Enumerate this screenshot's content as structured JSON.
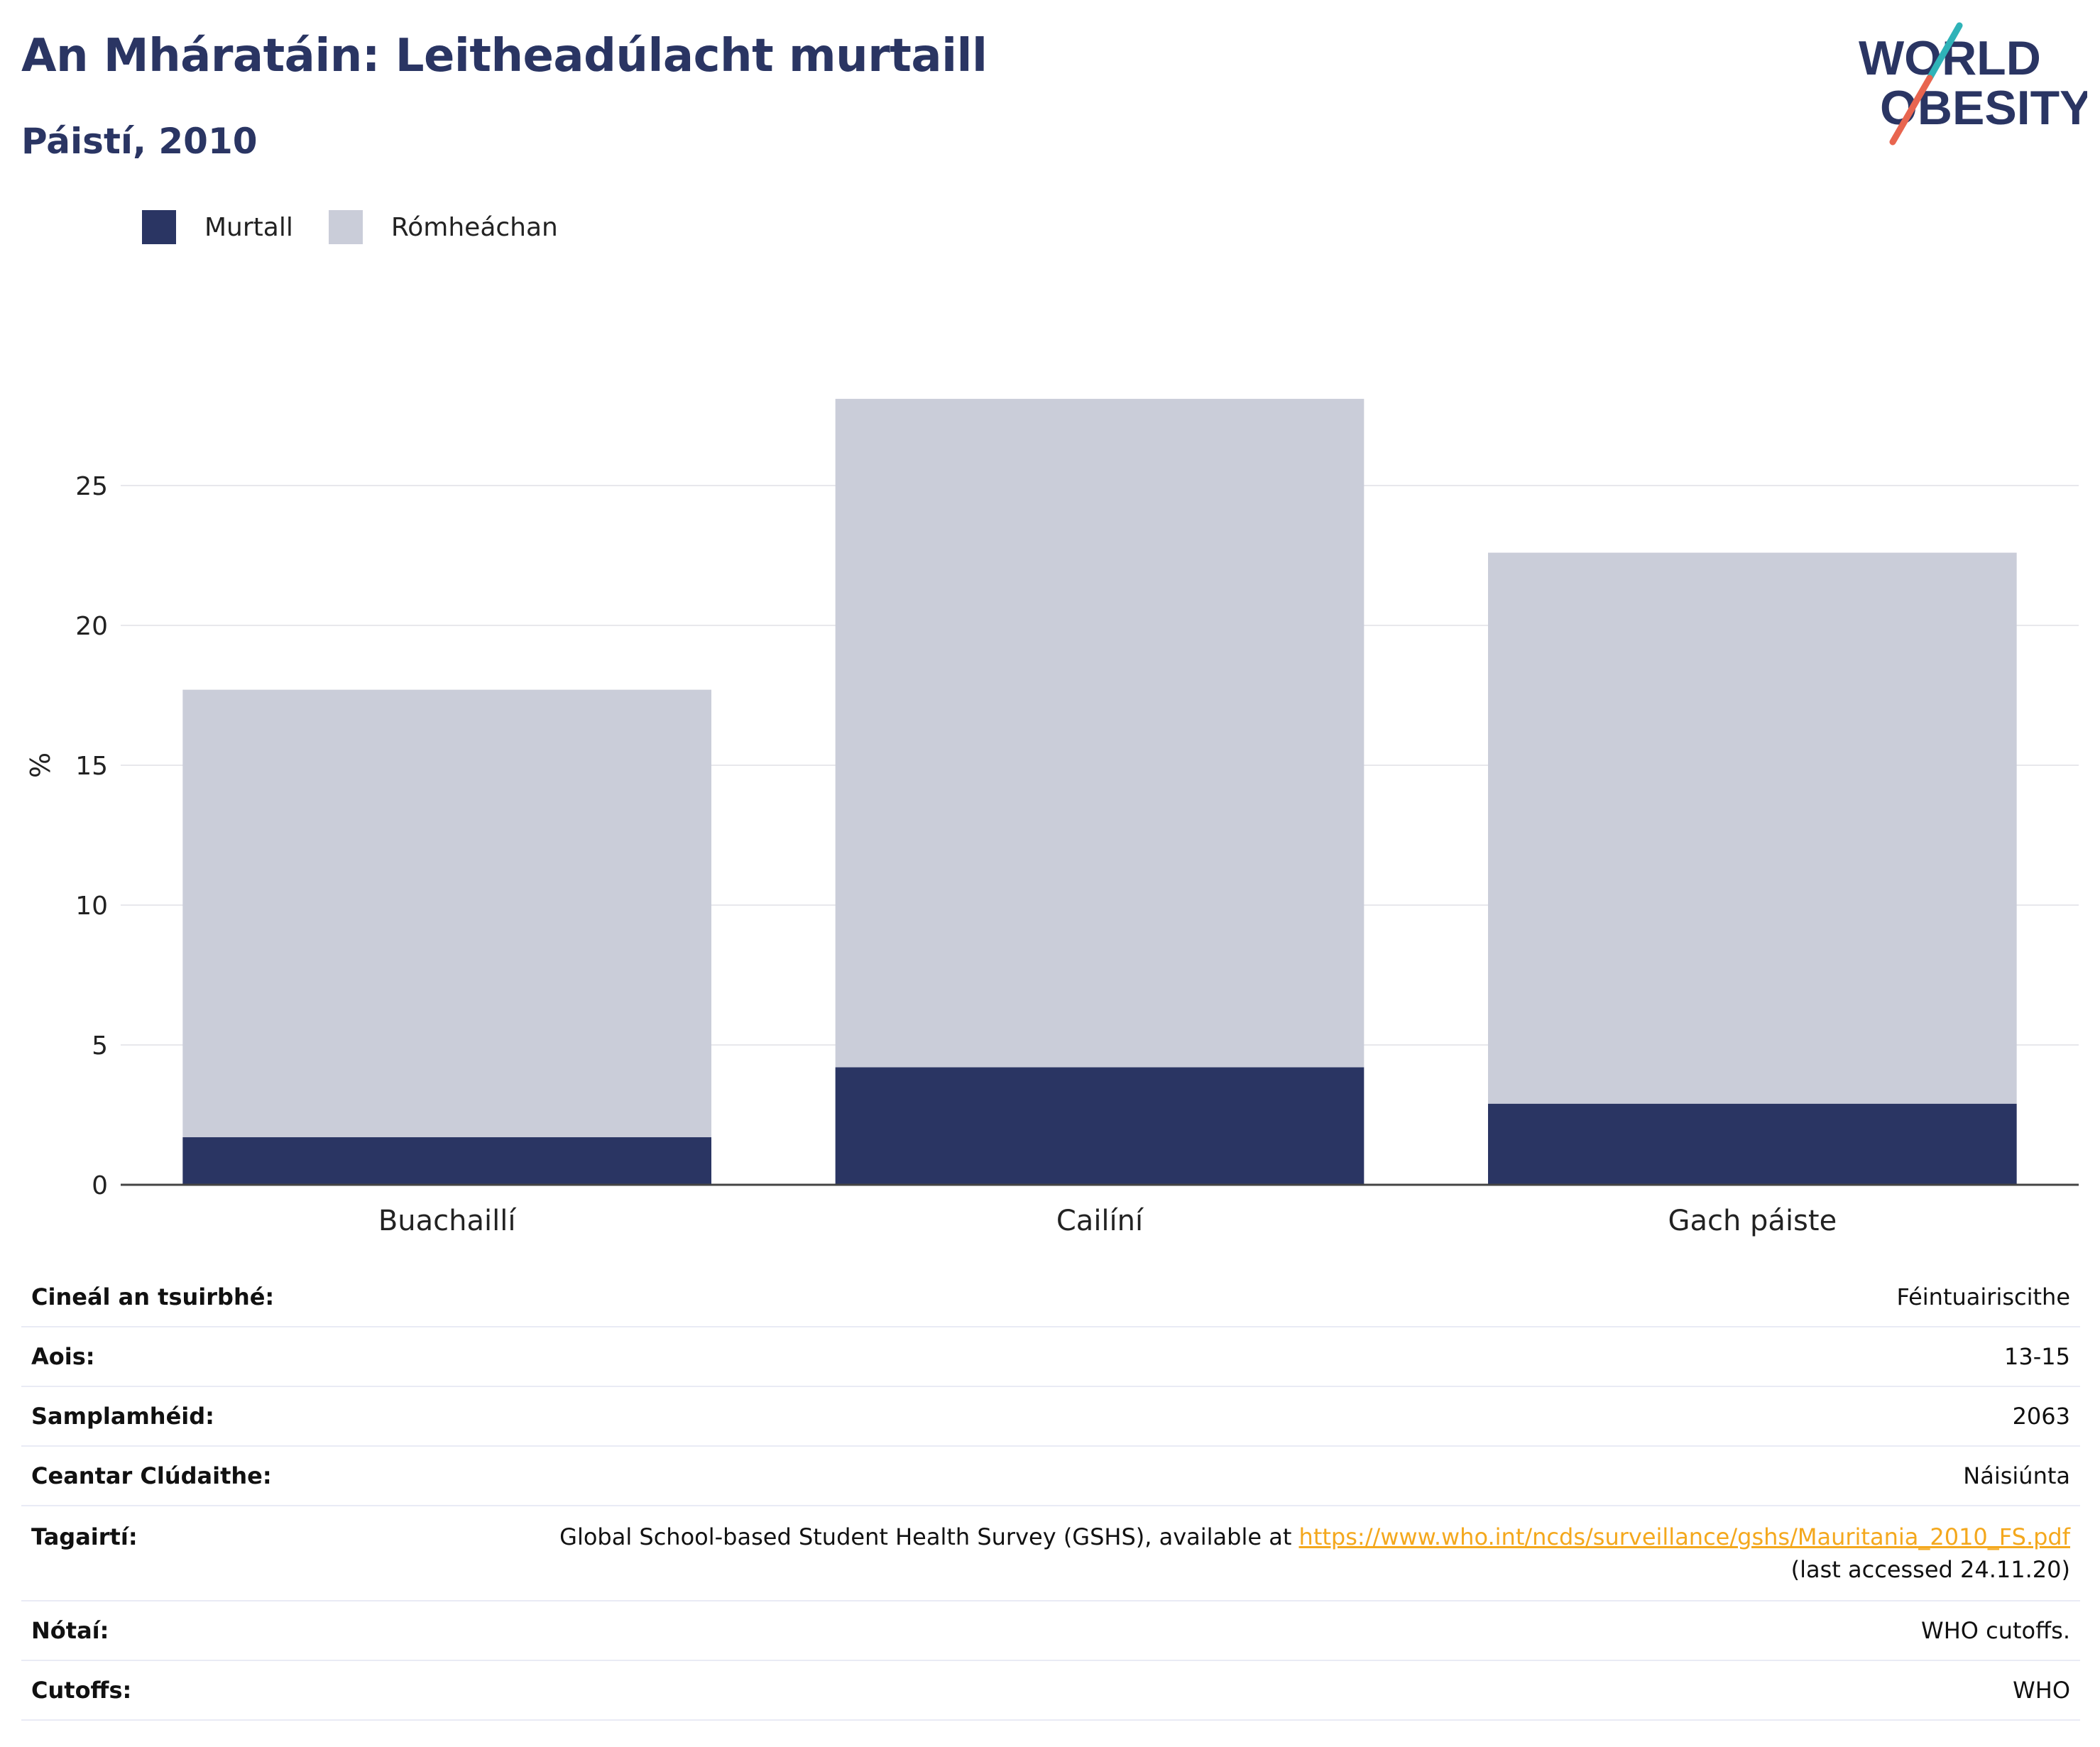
{
  "header": {
    "title": "An Mháratáin: Leitheadúlacht murtaill",
    "subtitle": "Páistí, 2010",
    "logo": {
      "line1": "WORLD",
      "line2": "OBESITY",
      "text_color": "#2a3563",
      "accent_teal": "#2fb3b8",
      "accent_coral": "#e8654f"
    }
  },
  "legend": [
    {
      "label": "Murtall",
      "color": "#2a3563"
    },
    {
      "label": "Rómheáchan",
      "color": "#cacdd9"
    }
  ],
  "chart_data": {
    "type": "bar",
    "stacked": true,
    "categories": [
      "Buachaillí",
      "Cailíní",
      "Gach páiste"
    ],
    "series": [
      {
        "name": "Murtall",
        "values": [
          1.7,
          4.2,
          2.9
        ],
        "color": "#2a3563"
      },
      {
        "name": "Rómheáchan",
        "values": [
          16.0,
          23.9,
          19.7
        ],
        "color": "#cacdd9"
      }
    ],
    "ylabel": "%",
    "xlabel": "",
    "ylim": [
      0,
      30
    ],
    "yticks": [
      0,
      5,
      10,
      15,
      20,
      25
    ],
    "grid": true,
    "legend_position": "top-left"
  },
  "info_table": {
    "rows": [
      {
        "key": "Cineál an tsuirbhé:",
        "value": "Féintuairiscithe"
      },
      {
        "key": "Aois:",
        "value": "13-15"
      },
      {
        "key": "Samplamhéid:",
        "value": "2063"
      },
      {
        "key": "Ceantar Clúdaithe:",
        "value": "Náisiúnta"
      }
    ],
    "references": {
      "key": "Tagairtí:",
      "text_before": "Global School-based Student Health Survey (GSHS), available at ",
      "link": "https://www.who.int/ncds/surveillance/gshs/Mauritania_2010_FS.pdf",
      "text_after": "(last accessed 24.11.20)"
    },
    "notes": {
      "key": "Nótaí:",
      "value": "WHO cutoffs."
    },
    "cutoffs": {
      "key": "Cutoffs:",
      "value": "WHO"
    }
  }
}
